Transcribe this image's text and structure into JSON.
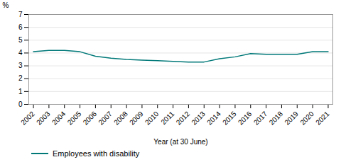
{
  "chart_data": {
    "type": "line",
    "x": [
      2002,
      2003,
      2004,
      2005,
      2006,
      2007,
      2008,
      2009,
      2010,
      2011,
      2012,
      2013,
      2014,
      2015,
      2016,
      2017,
      2018,
      2019,
      2020,
      2021
    ],
    "series": [
      {
        "name": "Employees with disability",
        "color": "#007878",
        "values": [
          4.1,
          4.2,
          4.2,
          4.1,
          3.75,
          3.6,
          3.5,
          3.45,
          3.4,
          3.35,
          3.3,
          3.3,
          3.55,
          3.7,
          3.95,
          3.9,
          3.9,
          3.9,
          4.1,
          4.1
        ]
      }
    ],
    "xlabel": "Year (at 30 June)",
    "ylabel": "%",
    "xlim": [
      2001.7,
      2021.3
    ],
    "xticks": [
      2002,
      2003,
      2004,
      2005,
      2006,
      2007,
      2008,
      2009,
      2010,
      2011,
      2012,
      2013,
      2014,
      2015,
      2016,
      2017,
      2018,
      2019,
      2020,
      2021
    ],
    "ylim": [
      0,
      7
    ],
    "yticks": [
      0,
      1,
      2,
      3,
      4,
      5,
      6,
      7
    ],
    "grid": true,
    "legend": "bottom"
  }
}
